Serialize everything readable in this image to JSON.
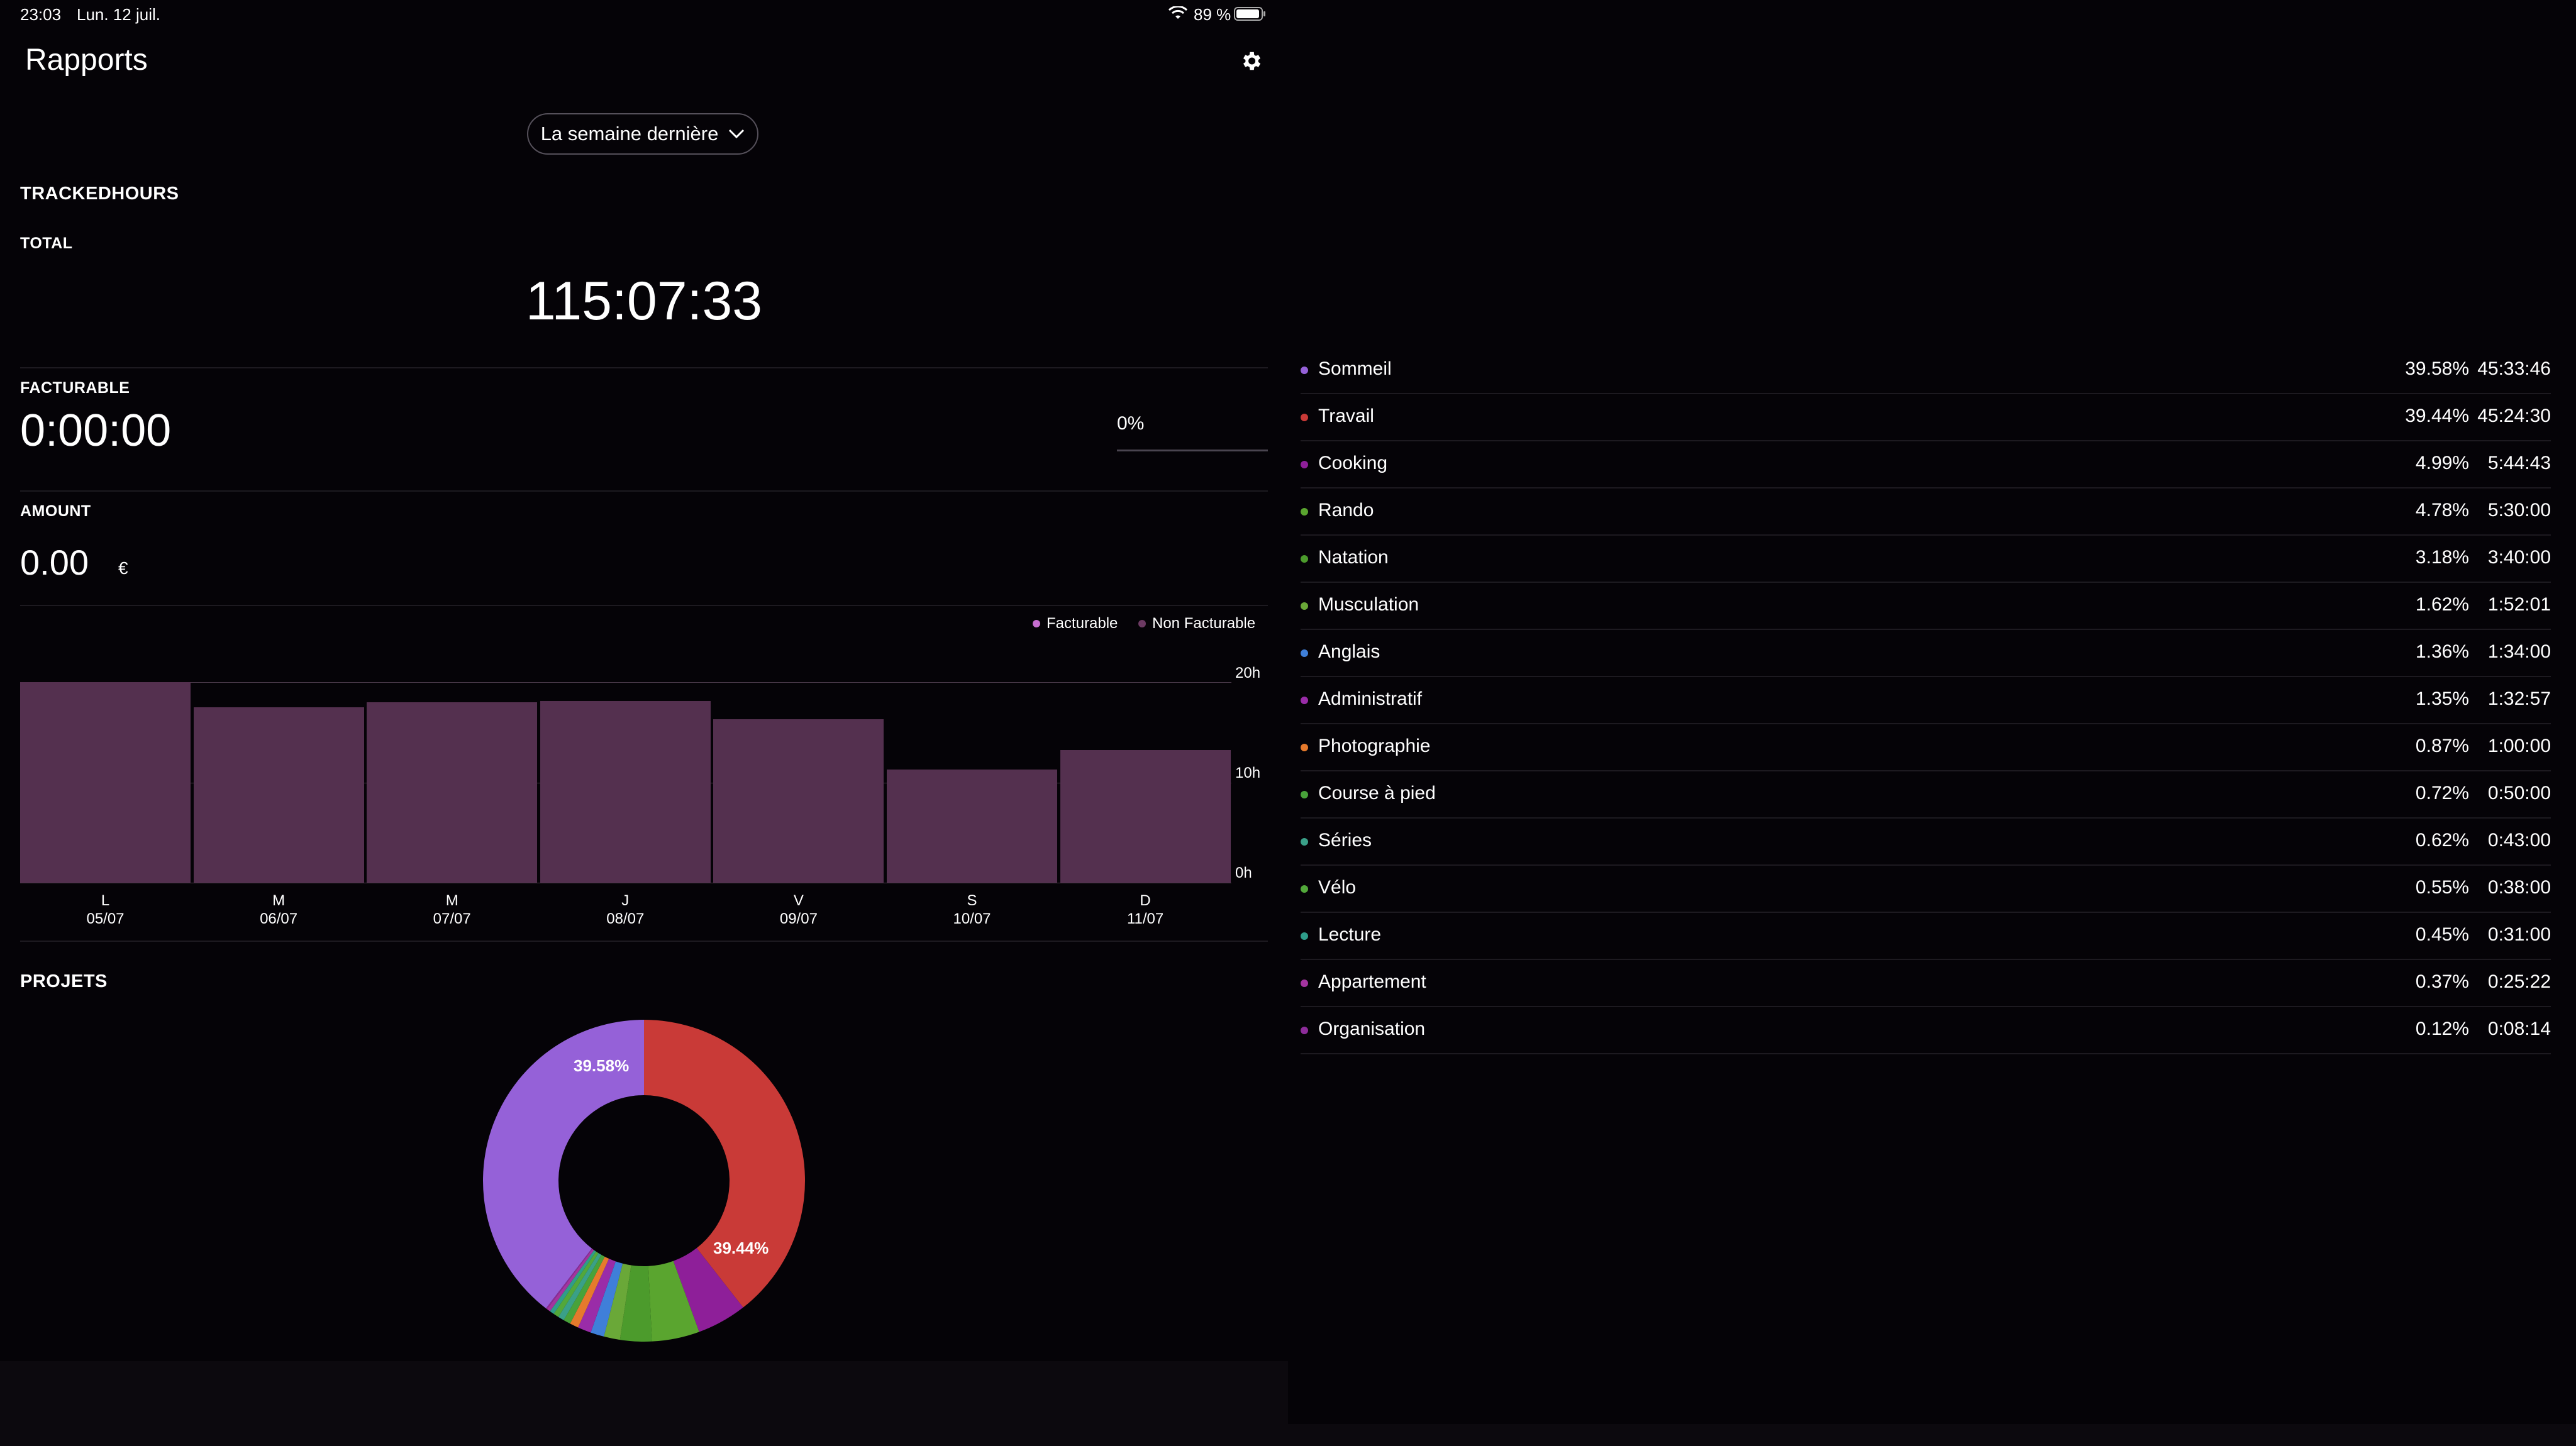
{
  "status_bar": {
    "time": "23:03",
    "date": "Lun. 12 juil.",
    "battery": "89 %"
  },
  "header": {
    "title": "Rapports",
    "settings_icon": "gear-icon"
  },
  "period": {
    "selected": "La semaine dernière"
  },
  "tracked": {
    "heading": "TRACKEDHOURS",
    "total_label": "TOTAL",
    "total_value": "115:07:33",
    "billable_label": "FACTURABLE",
    "billable_value": "0:00:00",
    "billable_percent": "0%",
    "billable_fraction": 0,
    "amount_label": "AMOUNT",
    "amount_value": "0.00",
    "currency": "€"
  },
  "chart_data": {
    "type": "bar",
    "legend": [
      {
        "name": "Facturable",
        "color": "#c76ed0"
      },
      {
        "name": "Non Facturable",
        "color": "#6d3a63"
      }
    ],
    "categories": [
      {
        "day": "L",
        "date": "05/07"
      },
      {
        "day": "M",
        "date": "06/07"
      },
      {
        "day": "M",
        "date": "07/07"
      },
      {
        "day": "J",
        "date": "08/07"
      },
      {
        "day": "V",
        "date": "09/07"
      },
      {
        "day": "S",
        "date": "10/07"
      },
      {
        "day": "D",
        "date": "11/07"
      }
    ],
    "series": [
      {
        "name": "Facturable",
        "values": [
          0,
          0,
          0,
          0,
          0,
          0,
          0
        ]
      },
      {
        "name": "Non Facturable",
        "values": [
          20.0,
          17.5,
          18.0,
          18.1,
          16.3,
          11.3,
          13.2
        ]
      }
    ],
    "y_ticks": [
      "20h",
      "10h",
      "0h"
    ],
    "ylim": [
      0,
      20
    ],
    "bar_color": "#54304f"
  },
  "projects": {
    "heading": "PROJETS",
    "donut_labels": {
      "first": "39.58%",
      "second": "39.44%"
    },
    "items": [
      {
        "name": "Sommeil",
        "percent": "39.58%",
        "time": "45:33:46",
        "share": 39.58,
        "color": "#9561d8"
      },
      {
        "name": "Travail",
        "percent": "39.44%",
        "time": "45:24:30",
        "share": 39.44,
        "color": "#c93a37"
      },
      {
        "name": "Cooking",
        "percent": "4.99%",
        "time": "5:44:43",
        "share": 4.99,
        "color": "#8e1f99"
      },
      {
        "name": "Rando",
        "percent": "4.78%",
        "time": "5:30:00",
        "share": 4.78,
        "color": "#5aa52f"
      },
      {
        "name": "Natation",
        "percent": "3.18%",
        "time": "3:40:00",
        "share": 3.18,
        "color": "#4c9b2c"
      },
      {
        "name": "Musculation",
        "percent": "1.62%",
        "time": "1:52:01",
        "share": 1.62,
        "color": "#6aa838"
      },
      {
        "name": "Anglais",
        "percent": "1.36%",
        "time": "1:34:00",
        "share": 1.36,
        "color": "#3f7fd9"
      },
      {
        "name": "Administratif",
        "percent": "1.35%",
        "time": "1:32:57",
        "share": 1.35,
        "color": "#9a2ca8"
      },
      {
        "name": "Photographie",
        "percent": "0.87%",
        "time": "1:00:00",
        "share": 0.87,
        "color": "#e67a2c"
      },
      {
        "name": "Course à pied",
        "percent": "0.72%",
        "time": "0:50:00",
        "share": 0.72,
        "color": "#48a23a"
      },
      {
        "name": "Séries",
        "percent": "0.62%",
        "time": "0:43:00",
        "share": 0.62,
        "color": "#3aa088"
      },
      {
        "name": "Vélo",
        "percent": "0.55%",
        "time": "0:38:00",
        "share": 0.55,
        "color": "#52a83a"
      },
      {
        "name": "Lecture",
        "percent": "0.45%",
        "time": "0:31:00",
        "share": 0.45,
        "color": "#2f9d8a"
      },
      {
        "name": "Appartement",
        "percent": "0.37%",
        "time": "0:25:22",
        "share": 0.37,
        "color": "#a3349f"
      },
      {
        "name": "Organisation",
        "percent": "0.12%",
        "time": "0:08:14",
        "share": 0.12,
        "color": "#8d2c9a"
      }
    ]
  }
}
